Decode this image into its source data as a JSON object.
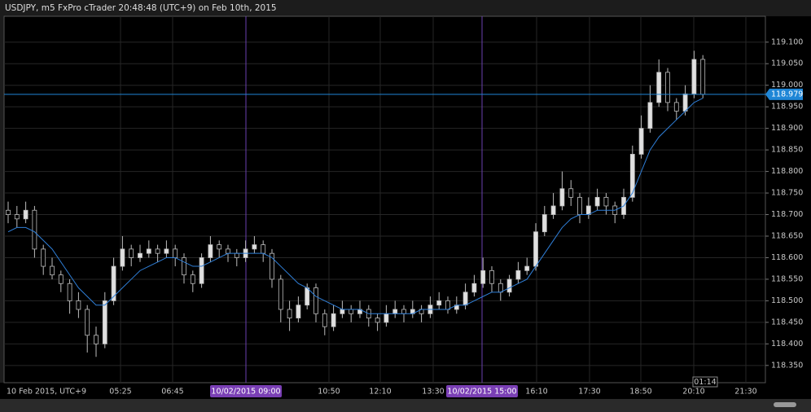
{
  "chart_data": {
    "type": "candlestick",
    "title": "USDJPY, m5 FxPro cTrader 20:48:48 (UTC+9) on Feb 10th, 2015",
    "open": [
      118.71,
      118.7,
      118.69,
      118.71,
      118.62,
      118.58,
      118.56,
      118.54,
      118.5,
      118.48,
      118.42,
      118.4,
      118.5,
      118.58,
      118.62,
      118.6,
      118.61,
      118.62,
      118.61,
      118.62,
      118.6,
      118.56,
      118.54,
      118.6,
      118.63,
      118.62,
      118.61,
      118.6,
      118.62,
      118.63,
      118.61,
      118.55,
      118.48,
      118.46,
      118.49,
      118.53,
      118.47,
      118.44,
      118.47,
      118.48,
      118.47,
      118.48,
      118.46,
      118.45,
      118.47,
      118.48,
      118.47,
      118.48,
      118.47,
      118.49,
      118.5,
      118.48,
      118.49,
      118.52,
      118.54,
      118.57,
      118.54,
      118.52,
      118.55,
      118.57,
      118.58,
      118.66,
      118.7,
      118.72,
      118.76,
      118.74,
      118.7,
      118.72,
      118.74,
      118.72,
      118.7,
      118.74,
      118.84,
      118.9,
      118.96,
      119.03,
      118.96,
      118.94,
      118.98,
      119.06
    ],
    "high": [
      118.73,
      118.72,
      118.73,
      118.72,
      118.63,
      118.6,
      118.57,
      118.55,
      118.52,
      118.49,
      118.44,
      118.52,
      118.6,
      118.65,
      118.63,
      118.63,
      118.64,
      118.63,
      118.64,
      118.63,
      118.61,
      118.57,
      118.61,
      118.65,
      118.64,
      118.63,
      118.62,
      118.64,
      118.65,
      118.64,
      118.62,
      118.56,
      118.5,
      118.51,
      118.54,
      118.54,
      118.48,
      118.49,
      118.5,
      118.49,
      118.5,
      118.49,
      118.47,
      118.49,
      118.5,
      118.49,
      118.5,
      118.49,
      118.51,
      118.52,
      118.51,
      118.51,
      118.54,
      118.56,
      118.6,
      118.58,
      118.55,
      118.56,
      118.59,
      118.6,
      118.68,
      118.72,
      118.75,
      118.8,
      118.78,
      118.75,
      118.74,
      118.76,
      118.75,
      118.73,
      118.76,
      118.86,
      118.93,
      119.0,
      119.06,
      119.04,
      118.97,
      119.0,
      119.08,
      119.07
    ],
    "low": [
      118.68,
      118.67,
      118.68,
      118.6,
      118.56,
      118.55,
      118.52,
      118.47,
      118.46,
      118.38,
      118.37,
      118.39,
      118.49,
      118.57,
      118.58,
      118.59,
      118.6,
      118.59,
      118.6,
      118.58,
      118.54,
      118.52,
      118.53,
      118.59,
      118.6,
      118.59,
      118.58,
      118.59,
      118.61,
      118.59,
      118.53,
      118.45,
      118.43,
      118.45,
      118.48,
      118.45,
      118.42,
      118.43,
      118.46,
      118.45,
      118.46,
      118.44,
      118.43,
      118.44,
      118.46,
      118.45,
      118.46,
      118.45,
      118.46,
      118.48,
      118.47,
      118.47,
      118.48,
      118.51,
      118.53,
      118.52,
      118.5,
      118.51,
      118.54,
      118.56,
      118.57,
      118.65,
      118.69,
      118.71,
      118.72,
      118.68,
      118.69,
      118.71,
      118.7,
      118.68,
      118.69,
      118.73,
      118.83,
      118.89,
      118.95,
      118.94,
      118.92,
      118.93,
      118.97,
      118.97
    ],
    "close": [
      118.7,
      118.69,
      118.71,
      118.62,
      118.58,
      118.56,
      118.54,
      118.5,
      118.48,
      118.42,
      118.4,
      118.5,
      118.58,
      118.62,
      118.6,
      118.61,
      118.62,
      118.61,
      118.62,
      118.6,
      118.56,
      118.54,
      118.6,
      118.63,
      118.62,
      118.61,
      118.6,
      118.62,
      118.63,
      118.61,
      118.55,
      118.48,
      118.46,
      118.49,
      118.53,
      118.47,
      118.44,
      118.47,
      118.48,
      118.47,
      118.48,
      118.46,
      118.45,
      118.47,
      118.48,
      118.47,
      118.48,
      118.47,
      118.49,
      118.5,
      118.48,
      118.49,
      118.52,
      118.54,
      118.57,
      118.54,
      118.52,
      118.55,
      118.57,
      118.58,
      118.66,
      118.7,
      118.72,
      118.76,
      118.74,
      118.7,
      118.72,
      118.74,
      118.72,
      118.7,
      118.74,
      118.84,
      118.9,
      118.96,
      119.03,
      118.96,
      118.94,
      118.98,
      119.06,
      118.979
    ],
    "moving_average": {
      "color": "#2f7fd8",
      "values": [
        118.66,
        118.67,
        118.67,
        118.66,
        118.64,
        118.62,
        118.59,
        118.56,
        118.53,
        118.51,
        118.49,
        118.49,
        118.51,
        118.53,
        118.55,
        118.57,
        118.58,
        118.59,
        118.6,
        118.6,
        118.59,
        118.58,
        118.58,
        118.59,
        118.6,
        118.61,
        118.61,
        118.61,
        118.61,
        118.61,
        118.6,
        118.58,
        118.56,
        118.54,
        118.53,
        118.51,
        118.5,
        118.49,
        118.48,
        118.48,
        118.48,
        118.47,
        118.47,
        118.47,
        118.47,
        118.47,
        118.47,
        118.48,
        118.48,
        118.48,
        118.48,
        118.49,
        118.49,
        118.5,
        118.51,
        118.52,
        118.52,
        118.53,
        118.54,
        118.55,
        118.58,
        118.61,
        118.64,
        118.67,
        118.69,
        118.7,
        118.7,
        118.71,
        118.71,
        118.71,
        118.72,
        118.75,
        118.8,
        118.85,
        118.88,
        118.9,
        118.92,
        118.94,
        118.96,
        118.97
      ]
    },
    "up_color": "#e0e0e0",
    "down_color": "#000000",
    "current_price": 118.979,
    "current_price_color": "#1f86d6",
    "ylim": [
      118.31,
      119.16
    ],
    "yticks": [
      {
        "value": 118.35,
        "label": "118.350"
      },
      {
        "value": 118.4,
        "label": "118.400"
      },
      {
        "value": 118.45,
        "label": "118.450"
      },
      {
        "value": 118.5,
        "label": "118.500"
      },
      {
        "value": 118.55,
        "label": "118.550"
      },
      {
        "value": 118.6,
        "label": "118.600"
      },
      {
        "value": 118.65,
        "label": "118.650"
      },
      {
        "value": 118.7,
        "label": "118.700"
      },
      {
        "value": 118.75,
        "label": "118.750"
      },
      {
        "value": 118.8,
        "label": "118.800"
      },
      {
        "value": 118.85,
        "label": "118.850"
      },
      {
        "value": 118.9,
        "label": "118.900"
      },
      {
        "value": 118.95,
        "label": "118.950"
      },
      {
        "value": 119.0,
        "label": "119.000"
      },
      {
        "value": 119.05,
        "label": "119.050"
      },
      {
        "value": 119.1,
        "label": "119.100"
      }
    ],
    "xticks": [
      "10 Feb 2015, UTC+9",
      "05:25",
      "06:45",
      "10:50",
      "12:10",
      "13:30",
      "16:10",
      "17:30",
      "18:50",
      "20:10",
      "21:30"
    ],
    "session_markers": [
      "10/02/2015 09:00",
      "10/02/2015 15:00"
    ],
    "countdown": "01:14",
    "grid": true
  }
}
